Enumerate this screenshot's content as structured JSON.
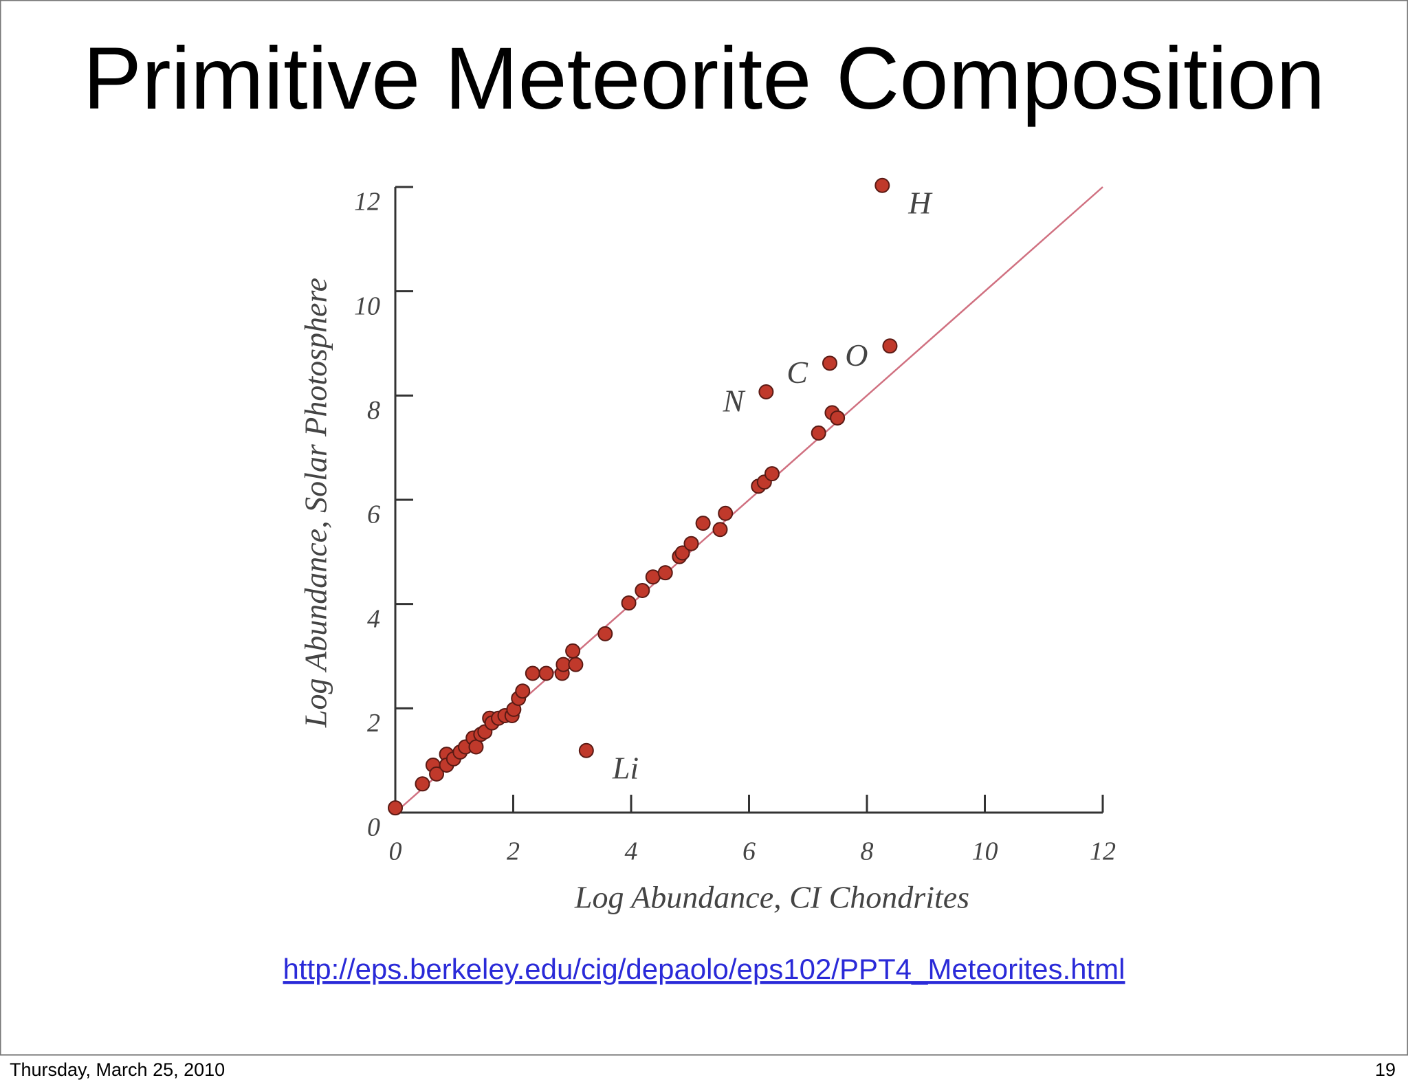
{
  "title": "Primitive Meteorite Composition",
  "link": "http://eps.berkeley.edu/cig/depaolo/eps102/PPT4_Meteorites.html",
  "footer": {
    "date": "Thursday, March 25, 2010",
    "page": "19"
  },
  "chart_data": {
    "type": "scatter",
    "x_label": "Log Abundance, CI Chondrites",
    "y_label": "Log Abundance, Solar Photosphere",
    "xlim": [
      0,
      12
    ],
    "ylim": [
      0,
      12
    ],
    "xticks": [
      0,
      2,
      4,
      6,
      8,
      10,
      12
    ],
    "yticks": [
      0,
      2,
      4,
      6,
      8,
      10,
      12
    ],
    "color": "#c0392b",
    "line_color": "#d07080",
    "x": [
      0.0,
      0.46,
      0.64,
      0.7,
      0.87,
      0.87,
      0.99,
      1.1,
      1.19,
      1.32,
      1.37,
      1.45,
      1.52,
      1.6,
      1.64,
      1.75,
      1.86,
      1.98,
      2.01,
      2.09,
      2.16,
      2.33,
      2.56,
      2.83,
      2.85,
      3.01,
      3.06,
      3.24,
      3.56,
      3.96,
      4.19,
      4.37,
      4.58,
      4.82,
      4.87,
      5.02,
      5.22,
      5.51,
      5.6,
      6.16,
      6.26,
      6.39,
      6.29,
      7.18,
      7.37,
      7.41,
      7.5,
      8.39,
      8.26
    ],
    "values": [
      0.09,
      0.55,
      0.91,
      0.74,
      1.12,
      0.91,
      1.03,
      1.16,
      1.26,
      1.43,
      1.26,
      1.5,
      1.55,
      1.81,
      1.72,
      1.81,
      1.86,
      1.86,
      1.98,
      2.19,
      2.33,
      2.67,
      2.67,
      2.67,
      2.84,
      3.1,
      2.84,
      1.19,
      3.43,
      4.02,
      4.26,
      4.52,
      4.6,
      4.91,
      4.98,
      5.16,
      5.55,
      5.43,
      5.74,
      6.26,
      6.34,
      6.5,
      8.07,
      7.28,
      8.62,
      7.67,
      7.57,
      8.95,
      12.03
    ],
    "point_labels": [
      null,
      null,
      null,
      null,
      null,
      null,
      null,
      null,
      null,
      null,
      null,
      null,
      null,
      null,
      null,
      null,
      null,
      null,
      null,
      null,
      null,
      null,
      null,
      null,
      null,
      null,
      null,
      "Li",
      null,
      null,
      null,
      null,
      null,
      null,
      null,
      null,
      null,
      null,
      null,
      null,
      null,
      null,
      "N",
      null,
      "C",
      null,
      null,
      "O",
      "H"
    ]
  }
}
